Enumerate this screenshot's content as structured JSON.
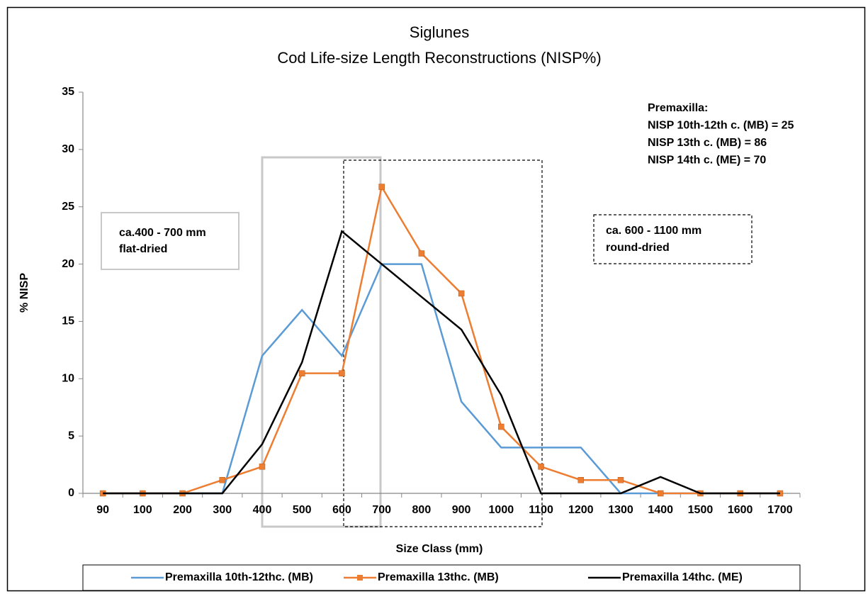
{
  "chart_data": {
    "type": "line",
    "title": "Siglunes",
    "subtitle": "Cod Life-size Length Reconstructions (NISP%)",
    "x_label": "Size Class (mm)",
    "y_label": "% NISP",
    "categories": [
      "90",
      "100",
      "200",
      "300",
      "400",
      "500",
      "600",
      "700",
      "800",
      "900",
      "1000",
      "1100",
      "1200",
      "1300",
      "1400",
      "1500",
      "1600",
      "1700"
    ],
    "series": [
      {
        "name": "Premaxilla 10th-12thc. (MB)",
        "color": "#5b9bd5",
        "marker": false,
        "values": [
          0,
          0,
          0,
          0,
          12,
          16,
          12,
          20,
          20,
          8,
          4,
          4,
          4,
          0,
          0,
          0,
          0,
          0
        ]
      },
      {
        "name": "Premaxilla 13thc. (MB)",
        "color": "#ed7d31",
        "marker": true,
        "values": [
          0,
          0,
          0,
          1.16,
          2.33,
          10.47,
          10.47,
          26.74,
          20.93,
          17.44,
          5.81,
          2.33,
          1.16,
          1.16,
          0,
          0,
          0,
          0
        ]
      },
      {
        "name": "Premaxilla 14thc. (ME)",
        "color": "#000000",
        "marker": false,
        "values": [
          0,
          0,
          0,
          0,
          4.29,
          11.43,
          22.86,
          20,
          17.14,
          14.29,
          8.57,
          0,
          0,
          0,
          1.43,
          0,
          0,
          0
        ]
      }
    ],
    "ylim": [
      0,
      35
    ],
    "yticks": [
      0,
      5,
      10,
      15,
      20,
      25,
      30,
      35
    ],
    "grid": false,
    "legend": "bottom",
    "annotations": [
      "Premaxilla:",
      "NISP 10th-12th c. (MB) = 25",
      "NISP 13th c. (MB) = 86",
      "NISP 14th c. (ME) = 70"
    ],
    "box_notes": [
      [
        "ca.400 - 700 mm",
        "flat-dried"
      ],
      [
        "ca. 600 - 1100 mm",
        "round-dried"
      ]
    ]
  }
}
